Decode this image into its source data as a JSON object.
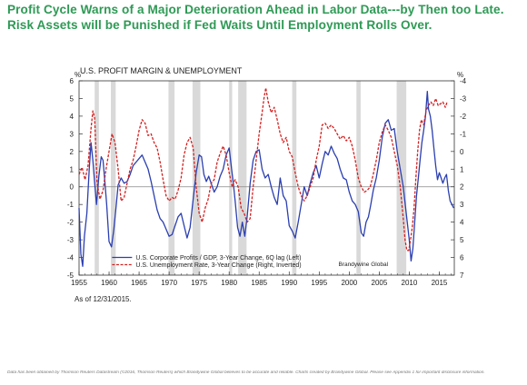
{
  "header": {
    "title": "Profit Cycle Warns of a Major Deterioration Ahead in Labor Data---by Then too Late. Risk Assets will be Punished if Fed Waits Until Employment Rolls Over."
  },
  "footer": {
    "as_of": "As of  12/31/2015.",
    "disclaimer": "Data has been obtained by Thomson Reuters Datastream (©2016, Thomson Reuters) which Brandywine Global believes to be accurate and reliable.  Charts created by Brandywine Global.  Please see Appendix 1 for important disclosure information."
  },
  "colors": {
    "title": "#2e9a55",
    "profits_line": "#2b3fb0",
    "unemployment_line": "#d42020",
    "recession_shading": "#d9d9d9",
    "zero_line": "#888888"
  },
  "chart_data": {
    "type": "line",
    "title": "U.S. PROFIT MARGIN & UNEMPLOYMENT",
    "left_axis_unit": "%",
    "right_axis_unit": "%",
    "xlim": [
      1955,
      2017.5
    ],
    "left_ylim": [
      -5,
      6
    ],
    "right_ylim": [
      7,
      -4
    ],
    "right_axis_inverted": true,
    "grid": false,
    "x_ticks": [
      1955,
      1960,
      1965,
      1970,
      1975,
      1980,
      1985,
      1990,
      1995,
      2000,
      2005,
      2010,
      2015
    ],
    "left_ticks": [
      -5,
      -4,
      -3,
      -2,
      -1,
      0,
      1,
      2,
      3,
      4,
      5,
      6
    ],
    "right_ticks": [
      -4,
      -3,
      -2,
      -1,
      0,
      1,
      2,
      3,
      4,
      5,
      6,
      7
    ],
    "recessions": [
      [
        1957.6,
        1958.3
      ],
      [
        1960.3,
        1961.1
      ],
      [
        1969.9,
        1970.9
      ],
      [
        1973.9,
        1975.2
      ],
      [
        1980.0,
        1980.5
      ],
      [
        1981.5,
        1982.9
      ],
      [
        1990.5,
        1991.2
      ],
      [
        2001.2,
        2001.9
      ],
      [
        2007.9,
        2009.5
      ]
    ],
    "annotation": "Brandywine Global",
    "legend_position": "bottom-left",
    "series": [
      {
        "name": "U.S. Corporate Profits / GDP, 3-Year Change, 6Q lag (Left)",
        "axis": "left",
        "style": "solid",
        "points": [
          [
            1955.0,
            -1.2
          ],
          [
            1955.3,
            -3.8
          ],
          [
            1955.6,
            -4.5
          ],
          [
            1955.9,
            -2.8
          ],
          [
            1956.3,
            -1.5
          ],
          [
            1956.7,
            1.0
          ],
          [
            1957.0,
            2.5
          ],
          [
            1957.3,
            1.5
          ],
          [
            1957.6,
            0.2
          ],
          [
            1957.9,
            -1.0
          ],
          [
            1958.3,
            0.6
          ],
          [
            1958.7,
            1.7
          ],
          [
            1959.0,
            1.5
          ],
          [
            1959.3,
            0.3
          ],
          [
            1959.6,
            -1.0
          ],
          [
            1960.0,
            -3.1
          ],
          [
            1960.4,
            -3.4
          ],
          [
            1960.8,
            -2.4
          ],
          [
            1961.2,
            -1.0
          ],
          [
            1961.5,
            0.1
          ],
          [
            1962.0,
            0.5
          ],
          [
            1962.5,
            0.2
          ],
          [
            1963.0,
            0.3
          ],
          [
            1963.5,
            0.7
          ],
          [
            1964.0,
            1.2
          ],
          [
            1964.5,
            1.4
          ],
          [
            1965.0,
            1.6
          ],
          [
            1965.5,
            1.8
          ],
          [
            1966.0,
            1.4
          ],
          [
            1966.5,
            1.0
          ],
          [
            1967.0,
            0.3
          ],
          [
            1967.5,
            -0.5
          ],
          [
            1968.0,
            -1.3
          ],
          [
            1968.5,
            -1.8
          ],
          [
            1969.0,
            -2.0
          ],
          [
            1969.5,
            -2.4
          ],
          [
            1970.0,
            -2.8
          ],
          [
            1970.5,
            -2.7
          ],
          [
            1971.0,
            -2.2
          ],
          [
            1971.5,
            -1.7
          ],
          [
            1972.0,
            -1.5
          ],
          [
            1972.5,
            -2.2
          ],
          [
            1973.0,
            -2.9
          ],
          [
            1973.5,
            -2.3
          ],
          [
            1974.0,
            -0.7
          ],
          [
            1974.5,
            0.8
          ],
          [
            1975.0,
            1.8
          ],
          [
            1975.4,
            1.7
          ],
          [
            1975.8,
            0.7
          ],
          [
            1976.2,
            0.3
          ],
          [
            1976.6,
            0.6
          ],
          [
            1977.0,
            0.2
          ],
          [
            1977.5,
            -0.3
          ],
          [
            1978.0,
            0.0
          ],
          [
            1978.5,
            0.6
          ],
          [
            1979.0,
            1.0
          ],
          [
            1979.5,
            1.8
          ],
          [
            1980.0,
            2.2
          ],
          [
            1980.3,
            1.3
          ],
          [
            1980.7,
            0.2
          ],
          [
            1981.0,
            -0.8
          ],
          [
            1981.4,
            -2.3
          ],
          [
            1981.8,
            -2.8
          ],
          [
            1982.2,
            -2.0
          ],
          [
            1982.6,
            -2.8
          ],
          [
            1983.0,
            -1.7
          ],
          [
            1983.5,
            0.2
          ],
          [
            1984.0,
            1.5
          ],
          [
            1984.5,
            2.0
          ],
          [
            1985.0,
            2.1
          ],
          [
            1985.5,
            1.0
          ],
          [
            1986.0,
            0.5
          ],
          [
            1986.5,
            0.7
          ],
          [
            1987.0,
            0.0
          ],
          [
            1987.5,
            -0.6
          ],
          [
            1988.0,
            -1.0
          ],
          [
            1988.5,
            0.5
          ],
          [
            1989.0,
            -0.5
          ],
          [
            1989.5,
            -0.8
          ],
          [
            1990.0,
            -2.2
          ],
          [
            1990.5,
            -2.5
          ],
          [
            1991.0,
            -2.9
          ],
          [
            1991.5,
            -2.0
          ],
          [
            1992.0,
            -1.0
          ],
          [
            1992.5,
            0.0
          ],
          [
            1993.0,
            -0.5
          ],
          [
            1993.5,
            0.2
          ],
          [
            1994.0,
            0.8
          ],
          [
            1994.5,
            1.2
          ],
          [
            1995.0,
            0.5
          ],
          [
            1995.5,
            1.3
          ],
          [
            1996.0,
            2.0
          ],
          [
            1996.5,
            1.8
          ],
          [
            1997.0,
            2.3
          ],
          [
            1997.5,
            1.9
          ],
          [
            1998.0,
            1.6
          ],
          [
            1998.5,
            1.0
          ],
          [
            1999.0,
            0.5
          ],
          [
            1999.5,
            0.4
          ],
          [
            2000.0,
            -0.3
          ],
          [
            2000.5,
            -0.8
          ],
          [
            2001.0,
            -1.0
          ],
          [
            2001.5,
            -1.4
          ],
          [
            2002.0,
            -2.6
          ],
          [
            2002.4,
            -2.8
          ],
          [
            2002.8,
            -2.0
          ],
          [
            2003.2,
            -1.7
          ],
          [
            2003.6,
            -1.0
          ],
          [
            2004.0,
            -0.2
          ],
          [
            2004.5,
            0.5
          ],
          [
            2005.0,
            1.5
          ],
          [
            2005.5,
            2.8
          ],
          [
            2006.0,
            3.6
          ],
          [
            2006.5,
            3.8
          ],
          [
            2007.0,
            3.2
          ],
          [
            2007.5,
            3.3
          ],
          [
            2008.0,
            2.0
          ],
          [
            2008.5,
            1.0
          ],
          [
            2009.0,
            0.0
          ],
          [
            2009.5,
            -1.5
          ],
          [
            2010.0,
            -3.0
          ],
          [
            2010.3,
            -4.2
          ],
          [
            2010.6,
            -3.5
          ],
          [
            2010.9,
            -2.0
          ],
          [
            2011.2,
            -0.5
          ],
          [
            2011.5,
            0.5
          ],
          [
            2011.8,
            1.5
          ],
          [
            2012.1,
            2.5
          ],
          [
            2012.4,
            3.2
          ],
          [
            2012.7,
            4.0
          ],
          [
            2013.0,
            5.4
          ],
          [
            2013.2,
            4.4
          ],
          [
            2013.5,
            4.0
          ],
          [
            2013.8,
            3.2
          ],
          [
            2014.1,
            2.2
          ],
          [
            2014.4,
            1.2
          ],
          [
            2014.7,
            0.4
          ],
          [
            2015.0,
            0.8
          ],
          [
            2015.3,
            0.5
          ],
          [
            2015.6,
            0.2
          ],
          [
            2015.9,
            0.5
          ],
          [
            2016.2,
            0.7
          ],
          [
            2016.5,
            -0.2
          ],
          [
            2016.8,
            -0.8
          ],
          [
            2017.1,
            -1.0
          ],
          [
            2017.4,
            -1.2
          ]
        ]
      },
      {
        "name": "U.S. Unemployment Rate, 3-Year Change (Right, Inverted)",
        "axis": "right",
        "style": "dashed",
        "points": [
          [
            1955.0,
            1.3
          ],
          [
            1955.5,
            0.9
          ],
          [
            1956.0,
            1.6
          ],
          [
            1956.5,
            0.8
          ],
          [
            1957.0,
            -1.3
          ],
          [
            1957.3,
            -2.3
          ],
          [
            1957.6,
            -1.9
          ],
          [
            1958.0,
            1.8
          ],
          [
            1958.5,
            2.7
          ],
          [
            1959.0,
            2.2
          ],
          [
            1959.5,
            1.0
          ],
          [
            1960.0,
            0.0
          ],
          [
            1960.5,
            -1.0
          ],
          [
            1961.0,
            -0.5
          ],
          [
            1961.5,
            1.0
          ],
          [
            1962.0,
            2.8
          ],
          [
            1962.5,
            2.6
          ],
          [
            1963.0,
            1.8
          ],
          [
            1963.5,
            1.0
          ],
          [
            1964.0,
            0.5
          ],
          [
            1964.5,
            -0.3
          ],
          [
            1965.0,
            -1.2
          ],
          [
            1965.5,
            -1.8
          ],
          [
            1966.0,
            -1.6
          ],
          [
            1966.5,
            -0.9
          ],
          [
            1967.0,
            -1.0
          ],
          [
            1967.5,
            -0.5
          ],
          [
            1968.0,
            -0.2
          ],
          [
            1968.5,
            0.6
          ],
          [
            1969.0,
            1.6
          ],
          [
            1969.5,
            2.5
          ],
          [
            1970.0,
            2.8
          ],
          [
            1970.5,
            2.6
          ],
          [
            1971.0,
            2.7
          ],
          [
            1971.5,
            2.2
          ],
          [
            1972.0,
            1.5
          ],
          [
            1972.5,
            0.2
          ],
          [
            1973.0,
            -0.5
          ],
          [
            1973.5,
            -0.8
          ],
          [
            1974.0,
            -0.2
          ],
          [
            1974.5,
            2.0
          ],
          [
            1975.0,
            3.5
          ],
          [
            1975.5,
            4.0
          ],
          [
            1976.0,
            3.2
          ],
          [
            1976.5,
            2.7
          ],
          [
            1977.0,
            1.8
          ],
          [
            1977.5,
            1.6
          ],
          [
            1978.0,
            0.6
          ],
          [
            1978.5,
            0.1
          ],
          [
            1979.0,
            -0.3
          ],
          [
            1979.5,
            0.2
          ],
          [
            1980.0,
            1.2
          ],
          [
            1980.5,
            2.0
          ],
          [
            1981.0,
            1.6
          ],
          [
            1981.5,
            2.0
          ],
          [
            1982.0,
            3.2
          ],
          [
            1982.5,
            3.5
          ],
          [
            1983.0,
            4.0
          ],
          [
            1983.5,
            3.8
          ],
          [
            1984.0,
            2.0
          ],
          [
            1984.5,
            0.5
          ],
          [
            1985.0,
            -1.0
          ],
          [
            1985.5,
            -2.2
          ],
          [
            1985.8,
            -3.0
          ],
          [
            1986.1,
            -3.6
          ],
          [
            1986.5,
            -2.8
          ],
          [
            1987.0,
            -2.2
          ],
          [
            1987.5,
            -2.5
          ],
          [
            1988.0,
            -1.8
          ],
          [
            1988.5,
            -1.0
          ],
          [
            1989.0,
            -0.5
          ],
          [
            1989.5,
            -0.8
          ],
          [
            1990.0,
            0.0
          ],
          [
            1990.5,
            0.3
          ],
          [
            1991.0,
            1.2
          ],
          [
            1991.5,
            2.0
          ],
          [
            1992.0,
            2.5
          ],
          [
            1992.5,
            2.8
          ],
          [
            1993.0,
            2.5
          ],
          [
            1993.5,
            2.0
          ],
          [
            1994.0,
            1.5
          ],
          [
            1994.5,
            0.5
          ],
          [
            1995.0,
            -0.3
          ],
          [
            1995.5,
            -1.5
          ],
          [
            1996.0,
            -1.6
          ],
          [
            1996.5,
            -1.3
          ],
          [
            1997.0,
            -1.5
          ],
          [
            1997.5,
            -1.3
          ],
          [
            1998.0,
            -1.0
          ],
          [
            1998.5,
            -0.7
          ],
          [
            1999.0,
            -0.9
          ],
          [
            1999.5,
            -0.6
          ],
          [
            2000.0,
            -0.8
          ],
          [
            2000.5,
            -0.3
          ],
          [
            2001.0,
            0.5
          ],
          [
            2001.5,
            1.5
          ],
          [
            2002.0,
            2.0
          ],
          [
            2002.5,
            2.3
          ],
          [
            2003.0,
            2.2
          ],
          [
            2003.5,
            2.0
          ],
          [
            2004.0,
            1.3
          ],
          [
            2004.5,
            0.5
          ],
          [
            2005.0,
            -0.5
          ],
          [
            2005.5,
            -1.1
          ],
          [
            2006.0,
            -1.5
          ],
          [
            2006.5,
            -1.2
          ],
          [
            2007.0,
            -0.8
          ],
          [
            2007.5,
            0.0
          ],
          [
            2008.0,
            0.8
          ],
          [
            2008.5,
            2.0
          ],
          [
            2009.0,
            3.8
          ],
          [
            2009.3,
            5.0
          ],
          [
            2009.6,
            5.6
          ],
          [
            2009.9,
            5.6
          ],
          [
            2010.2,
            5.0
          ],
          [
            2010.5,
            4.3
          ],
          [
            2010.8,
            3.2
          ],
          [
            2011.1,
            1.5
          ],
          [
            2011.4,
            0.0
          ],
          [
            2011.7,
            -1.2
          ],
          [
            2012.0,
            -1.8
          ],
          [
            2012.4,
            -1.5
          ],
          [
            2012.8,
            -2.3
          ],
          [
            2013.2,
            -2.6
          ],
          [
            2013.6,
            -2.8
          ],
          [
            2014.0,
            -2.6
          ],
          [
            2014.4,
            -3.0
          ],
          [
            2014.8,
            -2.6
          ],
          [
            2015.2,
            -2.7
          ],
          [
            2015.6,
            -2.8
          ],
          [
            2016.0,
            -2.5
          ],
          [
            2016.3,
            -2.8
          ]
        ]
      }
    ]
  }
}
